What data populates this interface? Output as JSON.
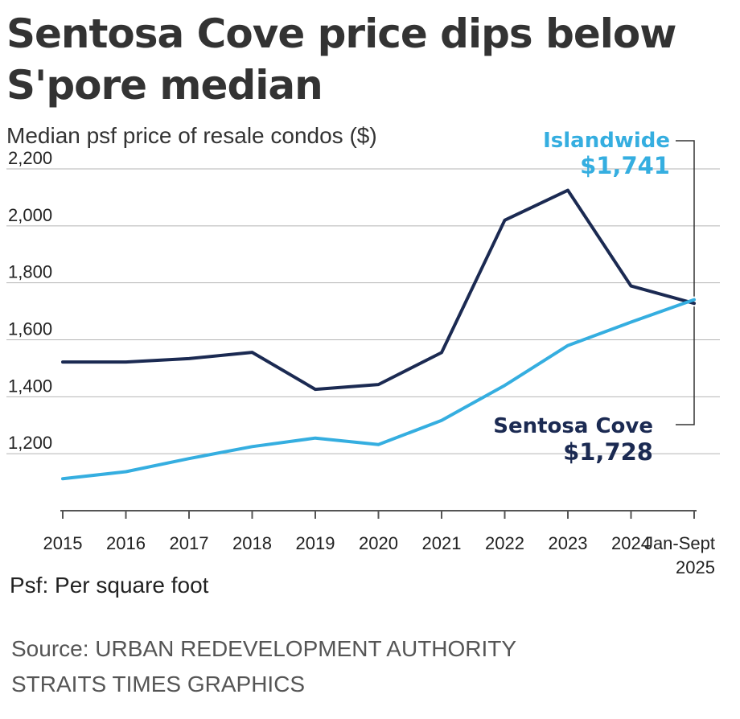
{
  "header": {
    "title_line1": "Sentosa Cove price dips below",
    "title_line2": "S'pore median",
    "subtitle": "Median psf price of resale condos ($)"
  },
  "footer": {
    "note": "Psf: Per square foot",
    "source_line1": "Source: URBAN REDEVELOPMENT AUTHORITY",
    "source_line2": "STRAITS TIMES GRAPHICS"
  },
  "colors": {
    "islandwide": "#35aee0",
    "sentosa": "#1b2a52",
    "grid": "#b5b5b5",
    "axis": "#555555"
  },
  "chart_data": {
    "type": "line",
    "title": "Sentosa Cove price dips below S'pore median",
    "ylabel": "Median psf price of resale condos ($)",
    "xlabel": "",
    "categories": [
      "2015",
      "2016",
      "2017",
      "2018",
      "2019",
      "2020",
      "2021",
      "2022",
      "2023",
      "2024",
      "Jan-Sept 2025"
    ],
    "category_labels": [
      [
        "2015"
      ],
      [
        "2016"
      ],
      [
        "2017"
      ],
      [
        "2018"
      ],
      [
        "2019"
      ],
      [
        "2020"
      ],
      [
        "2021"
      ],
      [
        "2022"
      ],
      [
        "2023"
      ],
      [
        "2024"
      ],
      [
        "Jan-Sept",
        "2025"
      ]
    ],
    "ylim": [
      1000,
      2200
    ],
    "yticks": [
      1200,
      1400,
      1600,
      1800,
      2000,
      2200
    ],
    "ytick_labels": [
      "1,200",
      "1,400",
      "1,600",
      "1,800",
      "2,000",
      "2,200"
    ],
    "grid": true,
    "series": [
      {
        "name": "Sentosa Cove",
        "color_key": "sentosa",
        "values": [
          1522,
          1522,
          1534,
          1556,
          1426,
          1443,
          1555,
          2020,
          2125,
          1789,
          1728
        ],
        "label_name": "Sentosa Cove",
        "label_value": "$1,728"
      },
      {
        "name": "Islandwide",
        "color_key": "islandwide",
        "values": [
          1112,
          1137,
          1183,
          1225,
          1255,
          1232,
          1317,
          1440,
          1580,
          1662,
          1741
        ],
        "label_name": "Islandwide",
        "label_value": "$1,741"
      }
    ]
  }
}
